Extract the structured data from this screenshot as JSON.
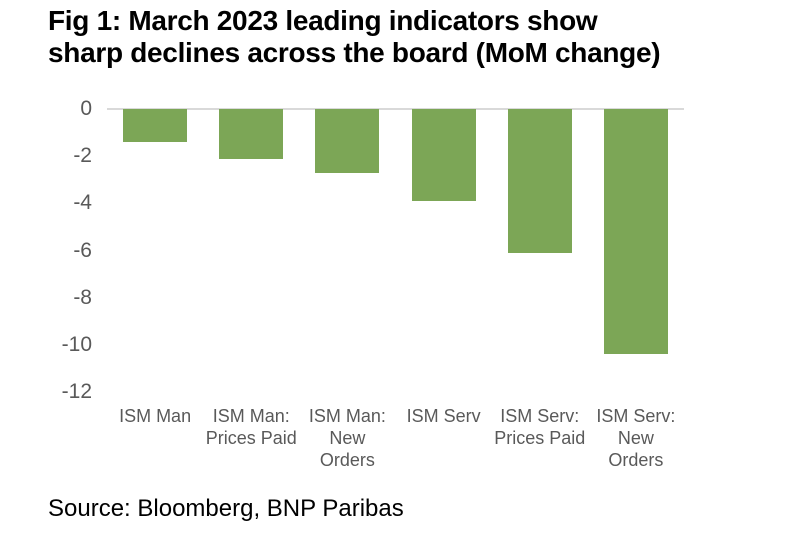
{
  "title_display": "Fig 1: March 2023 leading indicators show\nsharp declines across the board (MoM change)",
  "source": "Source: Bloomberg, BNP Paribas",
  "colors": {
    "bar": "#7CA656",
    "axis_text": "#595959",
    "zero_line": "#D9D9D9",
    "title_text": "#000000"
  },
  "chart_data": {
    "type": "bar",
    "title": "Fig 1: March 2023 leading indicators show sharp declines across the board (MoM change)",
    "categories": [
      "ISM Man",
      "ISM Man: Prices Paid",
      "ISM Man: New Orders",
      "ISM Serv",
      "ISM Serv: Prices Paid",
      "ISM Serv: New Orders"
    ],
    "category_label_lines": [
      "ISM Man",
      "ISM Man:\nPrices Paid",
      "ISM Man:\nNew\nOrders",
      "ISM Serv",
      "ISM Serv:\nPrices Paid",
      "ISM Serv:\nNew\nOrders"
    ],
    "values": [
      -1.4,
      -2.1,
      -2.7,
      -3.9,
      -6.1,
      -10.4
    ],
    "xlabel": "",
    "ylabel": "",
    "ylim": [
      -12,
      0
    ],
    "yticks": [
      0,
      -2,
      -4,
      -6,
      -8,
      -10,
      -12
    ],
    "grid": false,
    "legend": false,
    "bar_color": "#7CA656",
    "source_note": "Source: Bloomberg, BNP Paribas"
  }
}
